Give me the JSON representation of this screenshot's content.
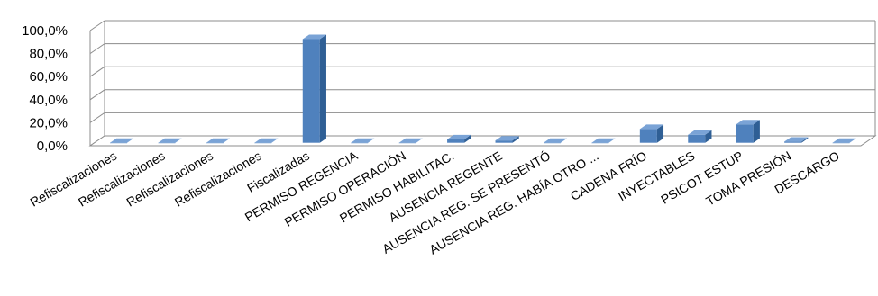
{
  "chart_data": {
    "type": "bar",
    "title": "",
    "xlabel": "",
    "ylabel": "",
    "ylim": [
      0,
      100
    ],
    "y_ticks": [
      "100,0%",
      "80,0%",
      "60,0%",
      "40,0%",
      "20,0%",
      "0,0%"
    ],
    "grid": true,
    "legend": "none",
    "bar_color": "#4f81bd",
    "categories": [
      "Refiscalizaciones",
      "Refiscalizaciones",
      "Refiscalizaciones",
      "Refiscalizaciones",
      "Fiscalizadas",
      "PERMISO REGENCIA",
      "PERMISO OPERACIÓN",
      "PERMISO HABILITAC.",
      "AUSENCIA REGENTE",
      "AUSENCIA REG.  SE PRESENTÓ",
      "AUSENCIA REG. HABÍA OTRO ...",
      "CADENA FRÍO",
      "INYECTABLES",
      "PSICOT  ESTUP",
      "TOMA PRESIÓN",
      "DESCARGO"
    ],
    "series": [
      {
        "values": [
          0,
          0,
          0,
          0,
          90,
          0,
          0,
          3,
          2,
          0,
          0,
          12,
          7,
          16,
          1,
          0
        ]
      }
    ]
  }
}
